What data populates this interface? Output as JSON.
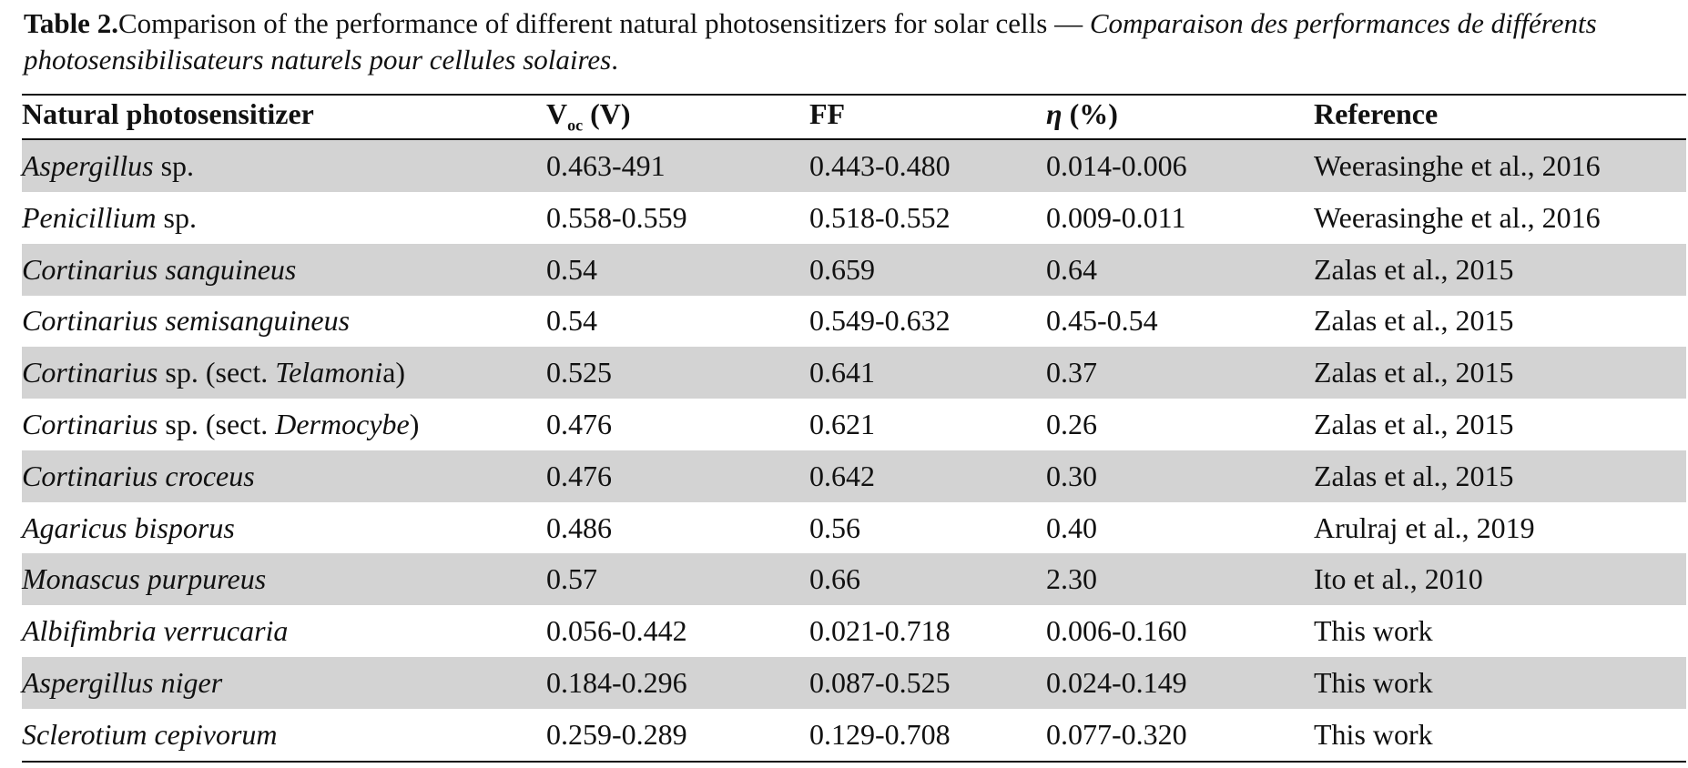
{
  "caption": {
    "label": "Table 2.",
    "text": "Comparison of the performance of different natural photosensitizers for solar cells — ",
    "translation": "Comparaison des performances de différents photosensibilisateurs naturels pour cellules solaires",
    "end": "."
  },
  "table": {
    "header": [
      [
        "Natural photosensitizer"
      ],
      [
        "V",
        {
          "sub": "oc"
        },
        " (V)"
      ],
      [
        "FF"
      ],
      [
        {
          "italic": "η"
        },
        " (%)"
      ],
      [
        "Reference"
      ]
    ],
    "rows": [
      [
        [
          {
            "italic": "Aspergillus"
          },
          " sp."
        ],
        "0.463-491",
        "0.443-0.480",
        "0.014-0.006",
        "Weerasinghe et al., 2016"
      ],
      [
        [
          {
            "italic": "Penicillium"
          },
          " sp."
        ],
        "0.558-0.559",
        "0.518-0.552",
        "0.009-0.011",
        "Weerasinghe et al., 2016"
      ],
      [
        [
          {
            "italic": "Cortinarius sanguineus"
          }
        ],
        "0.54",
        "0.659",
        "0.64",
        "Zalas et al., 2015"
      ],
      [
        [
          {
            "italic": "Cortinarius semisanguineus"
          }
        ],
        "0.54",
        "0.549-0.632",
        "0.45-0.54",
        "Zalas et al., 2015"
      ],
      [
        [
          {
            "italic": "Cortinarius"
          },
          " sp. (sect. ",
          {
            "italic": "Telamoni"
          },
          "a)"
        ],
        "0.525",
        "0.641",
        "0.37",
        "Zalas et al., 2015"
      ],
      [
        [
          {
            "italic": "Cortinarius"
          },
          " sp. (sect. ",
          {
            "italic": "Dermocybe"
          },
          ")"
        ],
        "0.476",
        "0.621",
        "0.26",
        "Zalas et al., 2015"
      ],
      [
        [
          {
            "italic": "Cortinarius croceus"
          }
        ],
        "0.476",
        "0.642",
        "0.30",
        "Zalas et al., 2015"
      ],
      [
        [
          {
            "italic": "Agaricus bisporus"
          }
        ],
        "0.486",
        "0.56",
        "0.40",
        "Arulraj et al., 2019"
      ],
      [
        [
          {
            "italic": "Monascus purpureus"
          }
        ],
        "0.57",
        "0.66",
        "2.30",
        "Ito et al., 2010"
      ],
      [
        [
          {
            "italic": "Albifimbria verrucaria"
          }
        ],
        "0.056-0.442",
        "0.021-0.718",
        "0.006-0.160",
        "This work"
      ],
      [
        [
          {
            "italic": "Aspergillus niger"
          }
        ],
        "0.184-0.296",
        "0.087-0.525",
        "0.024-0.149",
        "This work"
      ],
      [
        [
          {
            "italic": "Sclerotium cepivorum"
          }
        ],
        "0.259-0.289",
        "0.129-0.708",
        "0.077-0.320",
        "This work"
      ]
    ]
  }
}
